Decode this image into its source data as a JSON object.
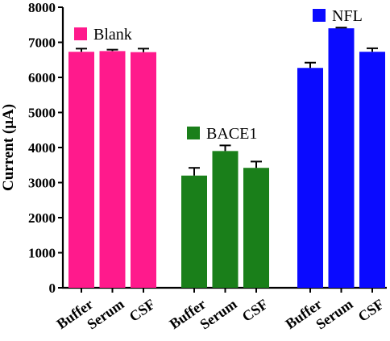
{
  "chart_data": {
    "type": "bar",
    "ylabel": "Current (μA)",
    "ylim": [
      0,
      8000
    ],
    "y_ticks": [
      "0",
      "1000",
      "2000",
      "3000",
      "4000",
      "5000",
      "6000",
      "7000",
      "8000"
    ],
    "grid": false,
    "error_bars": true,
    "groups": [
      {
        "name": "Blank",
        "color": "#ff1a8c",
        "categories": [
          "Buffer",
          "Serum",
          "CSF"
        ],
        "values": [
          6730,
          6750,
          6720
        ],
        "errors": [
          90,
          40,
          100
        ]
      },
      {
        "name": "BACE1",
        "color": "#1a7f1a",
        "categories": [
          "Buffer",
          "Serum",
          "CSF"
        ],
        "values": [
          3200,
          3900,
          3420
        ],
        "errors": [
          220,
          160,
          180
        ]
      },
      {
        "name": "NFL",
        "color": "#0a0aff",
        "categories": [
          "Buffer",
          "Serum",
          "CSF"
        ],
        "values": [
          6270,
          7400,
          6730
        ],
        "errors": [
          150,
          20,
          100
        ]
      }
    ]
  }
}
